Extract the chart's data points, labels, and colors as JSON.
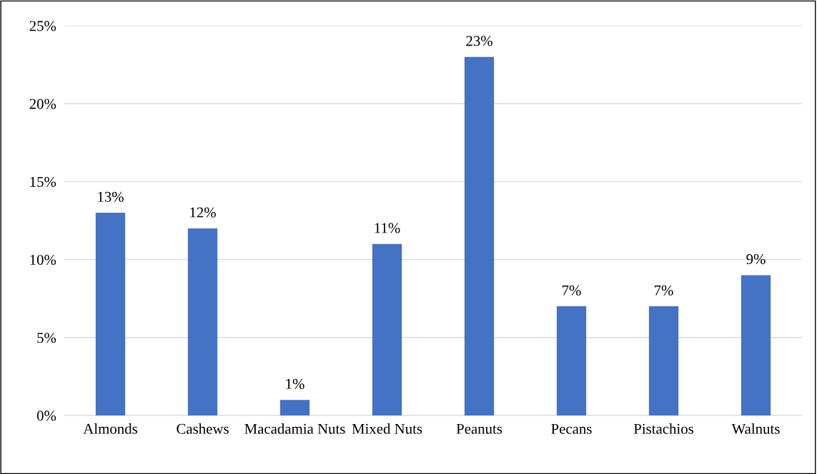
{
  "chart_data": {
    "type": "bar",
    "categories": [
      "Almonds",
      "Cashews",
      "Macadamia Nuts",
      "Mixed Nuts",
      "Peanuts",
      "Pecans",
      "Pistachios",
      "Walnuts"
    ],
    "values": [
      13,
      12,
      1,
      11,
      23,
      7,
      7,
      9
    ],
    "value_labels": [
      "13%",
      "12%",
      "1%",
      "11%",
      "23%",
      "7%",
      "7%",
      "9%"
    ],
    "color": "#4472c4",
    "ylim": [
      0,
      25
    ],
    "yticks": [
      {
        "value": 0,
        "label": "0%"
      },
      {
        "value": 5,
        "label": "5%"
      },
      {
        "value": 10,
        "label": "10%"
      },
      {
        "value": 15,
        "label": "15%"
      },
      {
        "value": 20,
        "label": "20%"
      },
      {
        "value": 25,
        "label": "25%"
      }
    ],
    "grid": "y"
  }
}
